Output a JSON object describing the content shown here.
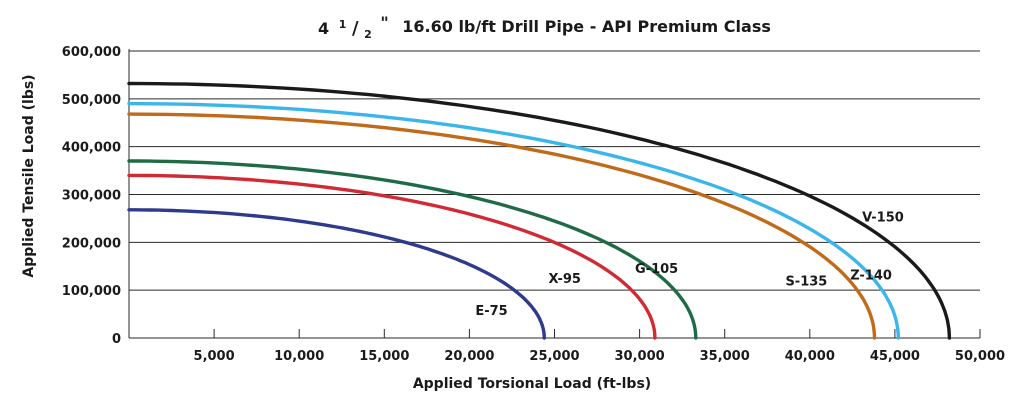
{
  "chart_data": {
    "type": "line",
    "title": {
      "prefix": "4",
      "fraction_numerator": "1",
      "fraction_slash": "/",
      "fraction_denominator": "2",
      "inch_mark": "\"",
      "main": "16.60 lb/ft Drill Pipe - API Premium Class"
    },
    "xlabel": "Applied Torsional Load (ft-lbs)",
    "ylabel": "Applied Tensile Load (lbs)",
    "xlim": [
      0,
      50000
    ],
    "ylim": [
      0,
      600000
    ],
    "x_ticks": [
      {
        "value": 5000,
        "label": "5,000"
      },
      {
        "value": 10000,
        "label": "10,000"
      },
      {
        "value": 15000,
        "label": "15,000"
      },
      {
        "value": 20000,
        "label": "20,000"
      },
      {
        "value": 25000,
        "label": "25,000"
      },
      {
        "value": 30000,
        "label": "30,000"
      },
      {
        "value": 35000,
        "label": "35,000"
      },
      {
        "value": 40000,
        "label": "40,000"
      },
      {
        "value": 45000,
        "label": "45,000"
      },
      {
        "value": 50000,
        "label": "50,000"
      }
    ],
    "y_ticks": [
      {
        "value": 0,
        "label": "0"
      },
      {
        "value": 100000,
        "label": "100,000"
      },
      {
        "value": 200000,
        "label": "200,000"
      },
      {
        "value": 300000,
        "label": "300,000"
      },
      {
        "value": 400000,
        "label": "400,000"
      },
      {
        "value": 500000,
        "label": "500,000"
      },
      {
        "value": 600000,
        "label": "600,000"
      }
    ],
    "grid": true,
    "series": [
      {
        "name": "E-75",
        "color": "#2e3a8c",
        "max_tension": 268000,
        "max_torsion": 24400,
        "label_at": [
          21300,
          48000
        ]
      },
      {
        "name": "X-95",
        "color": "#d12a35",
        "max_tension": 340000,
        "max_torsion": 30900,
        "label_at": [
          25600,
          115000
        ]
      },
      {
        "name": "G-105",
        "color": "#1f6b45",
        "max_tension": 370000,
        "max_torsion": 33300,
        "label_at": [
          31000,
          136000
        ]
      },
      {
        "name": "S-135",
        "color": "#c06a1a",
        "max_tension": 468000,
        "max_torsion": 43800,
        "label_at": [
          39800,
          110000
        ]
      },
      {
        "name": "Z-140",
        "color": "#3bb5ea",
        "max_tension": 490000,
        "max_torsion": 45200,
        "label_at": [
          43600,
          122000
        ]
      },
      {
        "name": "V-150",
        "color": "#1a1a1a",
        "max_tension": 532000,
        "max_torsion": 48200,
        "label_at": [
          44300,
          244000
        ]
      }
    ]
  }
}
